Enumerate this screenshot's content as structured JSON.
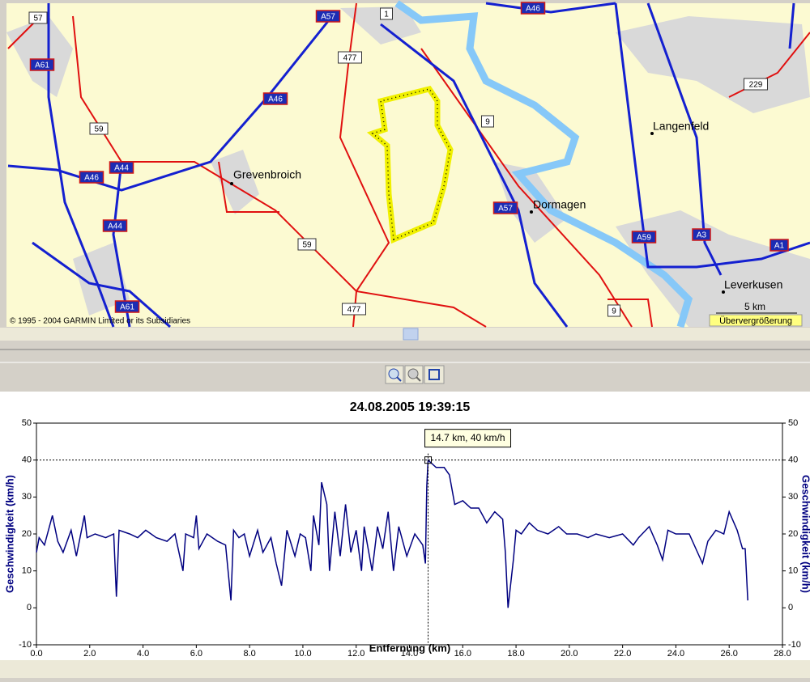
{
  "map": {
    "cities": [
      "Grevenbroich",
      "Langenfeld",
      "Dormagen",
      "Leverkusen"
    ],
    "roads": [
      "57",
      "A61",
      "A57",
      "1",
      "A46",
      "477",
      "A46",
      "59",
      "9",
      "229",
      "A44",
      "A46",
      "A57",
      "A44",
      "59",
      "A59",
      "A3",
      "A1",
      "A61",
      "477",
      "9"
    ],
    "copyright": "© 1995 - 2004 GARMIN Limited or its Subsidiaries",
    "scale": "5 km",
    "zoom_warning": "Übervergrößerung"
  },
  "chart_data": {
    "type": "line",
    "title": "24.08.2005 19:39:15",
    "x_label": "Entfernung (km)",
    "y_label": "Geschwindigkeit (km/h)",
    "y2_label": "Geschwindigkeit (km/h)",
    "color": "#000080",
    "xlim": [
      0,
      28
    ],
    "ylim": [
      -10,
      50
    ],
    "y2lim": [
      -10,
      50
    ],
    "xticks": [
      {
        "value": 0,
        "label": "0.0"
      },
      {
        "value": 2,
        "label": "2.0"
      },
      {
        "value": 4,
        "label": "4.0"
      },
      {
        "value": 6,
        "label": "6.0"
      },
      {
        "value": 8,
        "label": "8.0"
      },
      {
        "value": 10,
        "label": "10.0"
      },
      {
        "value": 12,
        "label": "12.0"
      },
      {
        "value": 14,
        "label": "14.0"
      },
      {
        "value": 16,
        "label": "16.0"
      },
      {
        "value": 18,
        "label": "18.0"
      },
      {
        "value": 20,
        "label": "20.0"
      },
      {
        "value": 22,
        "label": "22.0"
      },
      {
        "value": 24,
        "label": "24.0"
      },
      {
        "value": 26,
        "label": "26.0"
      },
      {
        "value": 28,
        "label": "28.0"
      }
    ],
    "yticks": [
      -10,
      0,
      10,
      20,
      30,
      40,
      50
    ],
    "y2ticks": [
      -10,
      0,
      10,
      20,
      30,
      40,
      50
    ],
    "x": [
      0,
      0.1,
      0.3,
      0.6,
      0.8,
      1.0,
      1.3,
      1.5,
      1.8,
      1.9,
      2.2,
      2.6,
      2.9,
      3.0,
      3.1,
      3.5,
      3.8,
      4.1,
      4.5,
      4.9,
      5.2,
      5.5,
      5.6,
      5.9,
      6.0,
      6.1,
      6.4,
      6.8,
      7.1,
      7.3,
      7.4,
      7.6,
      7.8,
      8.0,
      8.3,
      8.5,
      8.8,
      9.0,
      9.2,
      9.4,
      9.7,
      9.9,
      10.1,
      10.3,
      10.4,
      10.6,
      10.7,
      10.9,
      11.0,
      11.2,
      11.4,
      11.6,
      11.8,
      12.0,
      12.2,
      12.3,
      12.6,
      12.8,
      13.0,
      13.2,
      13.4,
      13.6,
      13.9,
      14.2,
      14.5,
      14.6,
      14.65,
      14.7,
      15.0,
      15.3,
      15.5,
      15.7,
      16.0,
      16.3,
      16.6,
      16.9,
      17.2,
      17.5,
      17.6,
      17.7,
      17.9,
      18.0,
      18.2,
      18.5,
      18.8,
      19.2,
      19.6,
      19.9,
      20.3,
      20.7,
      21.0,
      21.5,
      22.0,
      22.4,
      22.6,
      23.0,
      23.3,
      23.5,
      23.7,
      24.0,
      24.5,
      25.0,
      25.2,
      25.5,
      25.8,
      26.0,
      26.3,
      26.5,
      26.6,
      26.7
    ],
    "values": [
      15,
      19,
      17,
      25,
      18,
      15,
      21,
      14,
      25,
      19,
      20,
      19,
      20,
      3,
      21,
      20,
      19,
      21,
      19,
      18,
      20,
      10,
      20,
      19,
      25,
      16,
      20,
      18,
      17,
      2,
      21,
      19,
      20,
      14,
      21,
      15,
      19,
      12,
      6,
      21,
      14,
      20,
      19,
      10,
      25,
      17,
      34,
      28,
      10,
      26,
      14,
      28,
      15,
      21,
      10,
      22,
      10,
      22,
      16,
      26,
      10,
      22,
      14,
      20,
      17,
      12,
      33,
      40,
      38,
      38,
      36,
      28,
      29,
      27,
      27,
      23,
      26,
      24,
      15,
      0,
      13,
      21,
      20,
      23,
      21,
      20,
      22,
      20,
      20,
      19,
      20,
      19,
      20,
      17,
      19,
      22,
      17,
      13,
      21,
      20,
      20,
      12,
      18,
      21,
      20,
      26,
      21,
      16,
      16,
      2
    ],
    "cursor": {
      "x": 14.7,
      "y": 40,
      "label": "14.7 km, 40 km/h"
    }
  }
}
